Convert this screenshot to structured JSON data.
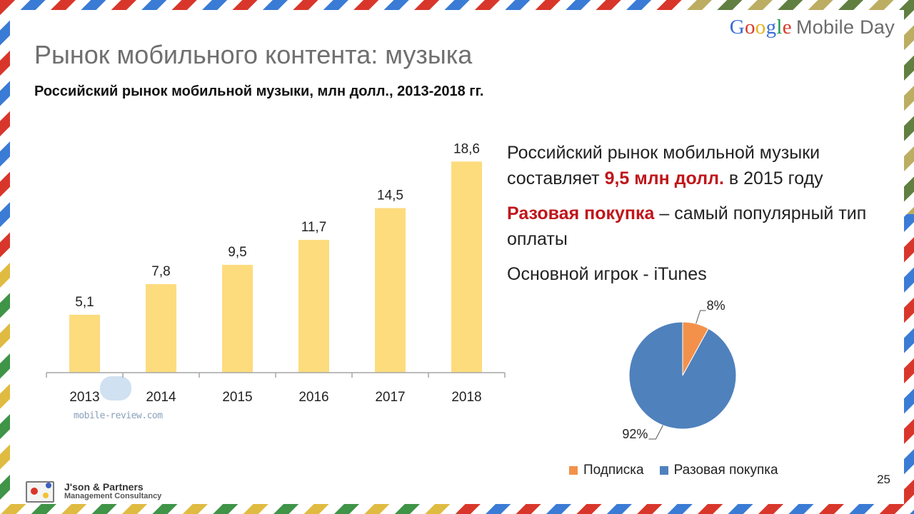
{
  "logo": {
    "google_letters": [
      "G",
      "o",
      "o",
      "g",
      "l",
      "e"
    ],
    "suffix": "Mobile Day"
  },
  "slide": {
    "title": "Рынок мобильного контента: музыка",
    "subtitle": "Российский рынок мобильной музыки, млн долл., 2013-2018 гг.",
    "page_number": "25"
  },
  "info": {
    "line1_pre": "Российский рынок мобильной музыки составляет ",
    "line1_highlight": "9,5 млн долл.",
    "line1_post": " в 2015 году",
    "line2_highlight": "Разовая покупка",
    "line2_post": " – самый популярный тип оплаты",
    "line3": "Основной игрок - iTunes"
  },
  "chart_data": [
    {
      "type": "bar",
      "categories": [
        "2013",
        "2014",
        "2015",
        "2016",
        "2017",
        "2018"
      ],
      "values": [
        5.1,
        7.8,
        9.5,
        11.7,
        14.5,
        18.6
      ],
      "value_labels": [
        "5,1",
        "7,8",
        "9,5",
        "11,7",
        "14,5",
        "18,6"
      ],
      "ylim": [
        0,
        19.5
      ],
      "grid": false,
      "bar_color": "#fddc7e",
      "axis_color": "#a6a6a6"
    },
    {
      "type": "pie",
      "labels": [
        "Подписка",
        "Разовая покупка"
      ],
      "values": [
        8,
        92
      ],
      "value_labels": [
        "8%",
        "92%"
      ],
      "colors": [
        "#f3914a",
        "#4f81bd"
      ],
      "legend": "bottom"
    }
  ],
  "watermark": {
    "text": "mobile-review.com"
  },
  "footer_logo": {
    "name": "J'son & Partners",
    "tagline": "Management Consultancy"
  },
  "colors": {
    "title": "#6f6f6f",
    "highlight": "#c0161b"
  }
}
